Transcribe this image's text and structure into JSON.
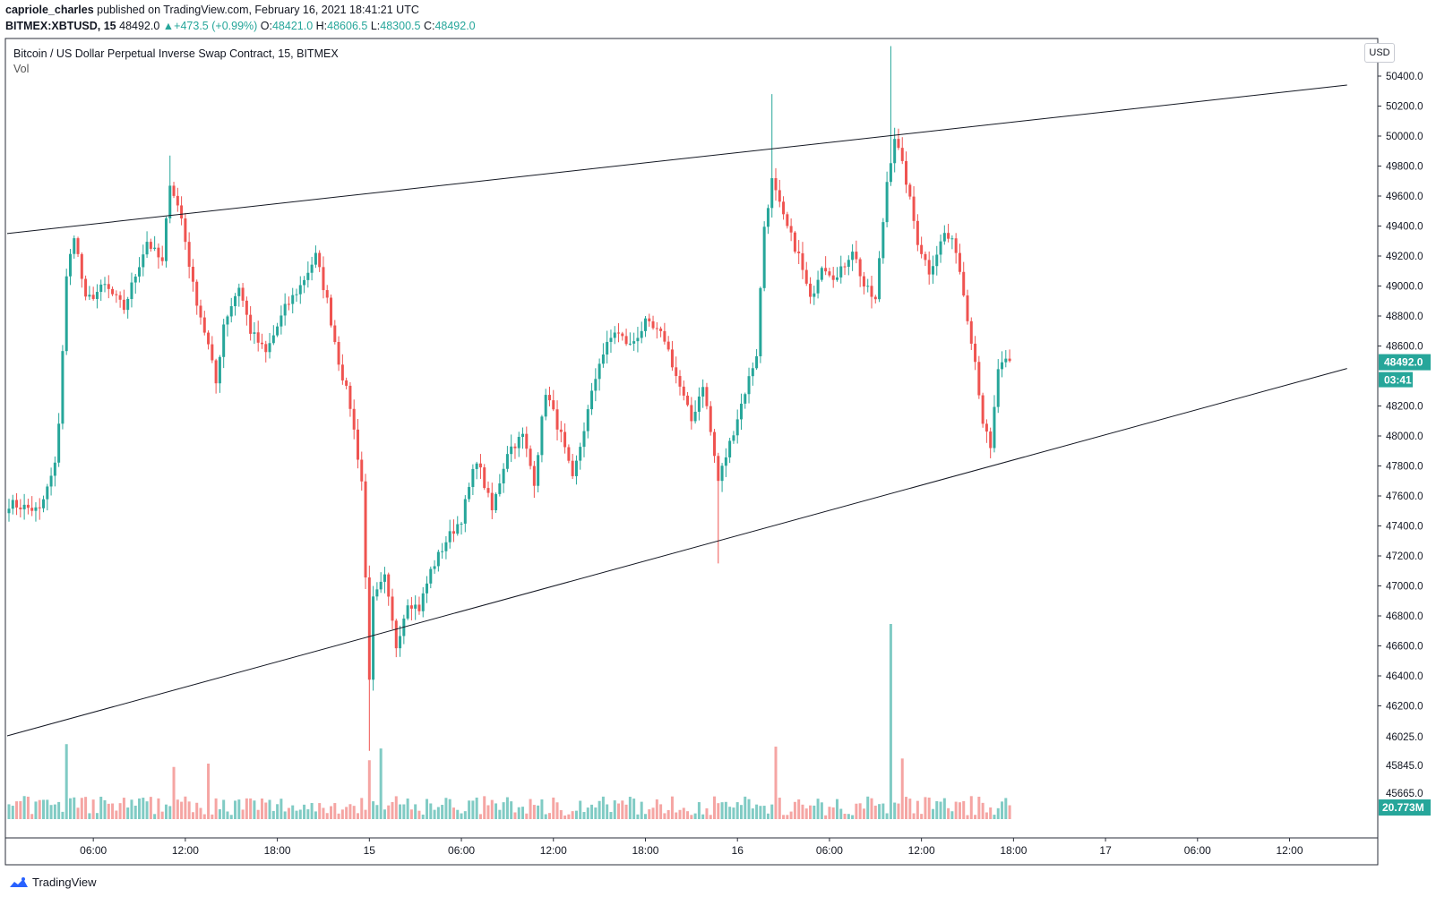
{
  "header": {
    "publisher": "capriole_charles",
    "published_text": "published on TradingView.com, February 16, 2021 18:41:21 UTC",
    "symbol": "BITMEX:XBTUSD, 15",
    "last": "48492.0",
    "change": "+473.5 (+0.99%)",
    "open_label": "O:",
    "open": "48421.0",
    "high_label": "H:",
    "high": "48606.5",
    "low_label": "L:",
    "low": "48300.5",
    "close_label": "C:",
    "close": "48492.0"
  },
  "legend": {
    "title": "Bitcoin / US Dollar Perpetual Inverse Swap Contract, 15, BITMEX",
    "vol": "Vol"
  },
  "currency_button": "USD",
  "branding": "TradingView",
  "colors": {
    "up": "#26a69a",
    "down": "#ef5350",
    "up_vol": "#80cbc4",
    "down_vol": "#f5a5a3",
    "text": "#131722"
  },
  "chart_data": {
    "type": "candlestick",
    "symbol": "BITMEX:XBTUSD",
    "interval_minutes": 15,
    "y_axis_labels": [
      "50400.0",
      "50200.0",
      "50000.0",
      "49800.0",
      "49600.0",
      "49400.0",
      "49200.0",
      "49000.0",
      "48800.0",
      "48600.0",
      "48200.0",
      "48000.0",
      "47800.0",
      "47600.0",
      "47400.0",
      "47200.0",
      "47000.0",
      "46800.0",
      "46600.0",
      "46400.0",
      "46200.0",
      "46025.0",
      "45845.0",
      "45665.0"
    ],
    "price_tick_values": [
      50400,
      50200,
      50000,
      49800,
      49600,
      49400,
      49200,
      49000,
      48800,
      48600,
      48200,
      48000,
      47800,
      47600,
      47400,
      47200,
      47000,
      46800,
      46600,
      46400,
      46200
    ],
    "price_range": [
      46000,
      50500
    ],
    "x_axis_labels": [
      "06:00",
      "12:00",
      "18:00",
      "15",
      "06:00",
      "12:00",
      "18:00",
      "16",
      "06:00",
      "12:00",
      "18:00",
      "17",
      "06:00",
      "12:00"
    ],
    "x_axis_bar_index": [
      22,
      46,
      70,
      94,
      118,
      142,
      166,
      190,
      214,
      238,
      262,
      286,
      310,
      334
    ],
    "current_price_label": "48492.0",
    "countdown_label": "03:41",
    "current_volume_label": "20.773M",
    "trendlines": [
      {
        "name": "upper resistance",
        "from": {
          "bar": 0,
          "price": 49350
        },
        "to": {
          "bar": 349,
          "price": 50340
        }
      },
      {
        "name": "lower support",
        "from": {
          "bar": 0,
          "price": 46000
        },
        "to": {
          "bar": 349,
          "price": 48450
        }
      }
    ],
    "anchor_closes": [
      [
        0,
        47550
      ],
      [
        8,
        47500
      ],
      [
        12,
        47800
      ],
      [
        13,
        48100
      ],
      [
        15,
        49050
      ],
      [
        17,
        49350
      ],
      [
        20,
        48900
      ],
      [
        25,
        49000
      ],
      [
        30,
        48850
      ],
      [
        36,
        49300
      ],
      [
        40,
        49150
      ],
      [
        42,
        49700
      ],
      [
        45,
        49450
      ],
      [
        48,
        49000
      ],
      [
        52,
        48600
      ],
      [
        54,
        48350
      ],
      [
        56,
        48750
      ],
      [
        60,
        49000
      ],
      [
        63,
        48700
      ],
      [
        67,
        48550
      ],
      [
        72,
        48850
      ],
      [
        76,
        49000
      ],
      [
        80,
        49200
      ],
      [
        83,
        48900
      ],
      [
        86,
        48500
      ],
      [
        89,
        48200
      ],
      [
        92,
        47700
      ],
      [
        94,
        46400
      ],
      [
        95,
        46900
      ],
      [
        98,
        47050
      ],
      [
        101,
        46600
      ],
      [
        104,
        46900
      ],
      [
        107,
        46850
      ],
      [
        110,
        47100
      ],
      [
        114,
        47300
      ],
      [
        118,
        47450
      ],
      [
        122,
        47850
      ],
      [
        126,
        47500
      ],
      [
        130,
        47900
      ],
      [
        134,
        48000
      ],
      [
        137,
        47700
      ],
      [
        140,
        48300
      ],
      [
        144,
        48000
      ],
      [
        147,
        47700
      ],
      [
        150,
        48050
      ],
      [
        154,
        48500
      ],
      [
        158,
        48700
      ],
      [
        162,
        48600
      ],
      [
        166,
        48750
      ],
      [
        171,
        48650
      ],
      [
        174,
        48400
      ],
      [
        178,
        48100
      ],
      [
        181,
        48350
      ],
      [
        185,
        47700
      ],
      [
        188,
        47950
      ],
      [
        192,
        48300
      ],
      [
        195,
        48550
      ],
      [
        197,
        49400
      ],
      [
        199,
        49700
      ],
      [
        202,
        49450
      ],
      [
        206,
        49200
      ],
      [
        209,
        48900
      ],
      [
        212,
        49150
      ],
      [
        216,
        49050
      ],
      [
        220,
        49250
      ],
      [
        223,
        49000
      ],
      [
        226,
        48900
      ],
      [
        229,
        49700
      ],
      [
        231,
        50000
      ],
      [
        234,
        49700
      ],
      [
        237,
        49300
      ],
      [
        240,
        49100
      ],
      [
        244,
        49350
      ],
      [
        247,
        49250
      ],
      [
        250,
        48800
      ],
      [
        252,
        48500
      ],
      [
        254,
        48100
      ],
      [
        256,
        47900
      ],
      [
        258,
        48450
      ],
      [
        261,
        48500
      ]
    ],
    "volume_spikes": [
      [
        15,
        "high"
      ],
      [
        43,
        "high"
      ],
      [
        52,
        "high"
      ],
      [
        94,
        "high"
      ],
      [
        97,
        "high"
      ],
      [
        200,
        "high"
      ],
      [
        230,
        "highest"
      ],
      [
        233,
        "high"
      ]
    ]
  }
}
